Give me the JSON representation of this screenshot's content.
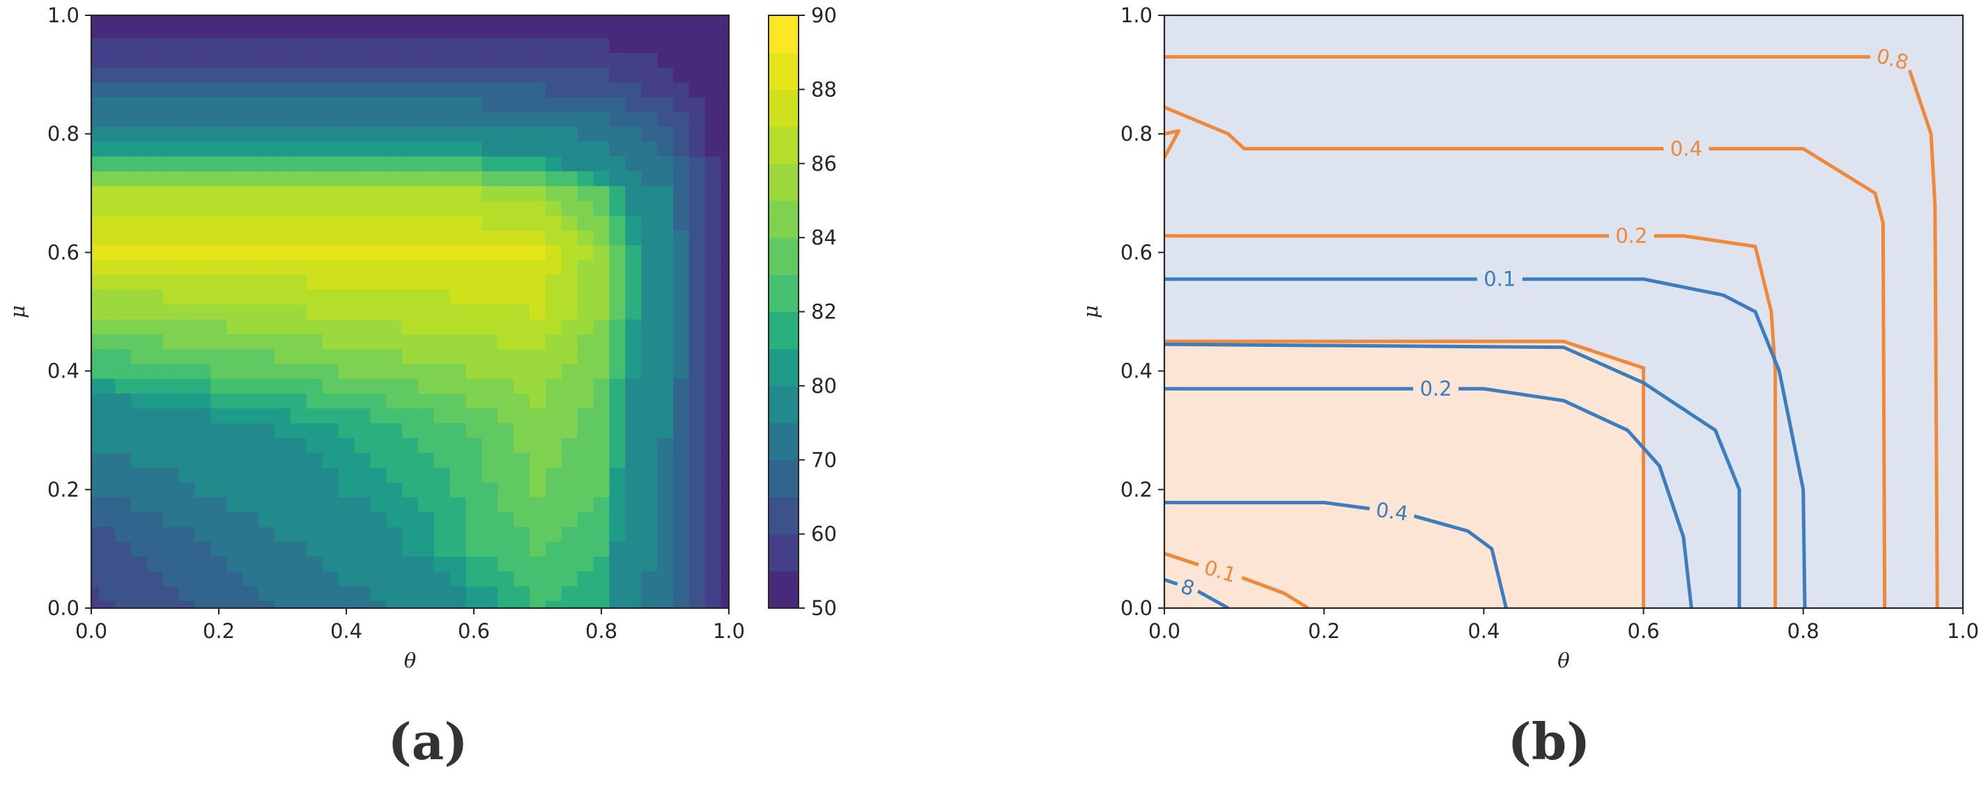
{
  "chart_data": [
    {
      "type": "heatmap",
      "panel": "(a)",
      "xlabel": "θ",
      "ylabel": "μ",
      "xlim": [
        0,
        1
      ],
      "ylim": [
        0,
        1
      ],
      "xticks": [
        "0.0",
        "0.2",
        "0.4",
        "0.6",
        "0.8",
        "1.0"
      ],
      "yticks": [
        "0.0",
        "0.2",
        "0.4",
        "0.6",
        "0.8",
        "1.0"
      ],
      "grid": false,
      "colormap": "viridis",
      "colorbar": {
        "levels": [
          50,
          55,
          60,
          65,
          70,
          75,
          80,
          81,
          82,
          83,
          84,
          85,
          86,
          87,
          88,
          89,
          90
        ],
        "tick_labels": [
          "50",
          "60",
          "70",
          "80",
          "82",
          "84",
          "86",
          "88",
          "90"
        ],
        "colors": [
          "#472b7a",
          "#443f89",
          "#3b528b",
          "#32658e",
          "#2a768e",
          "#228a8d",
          "#1f9c89",
          "#2ab07f",
          "#45bf70",
          "#61c961",
          "#7fd250",
          "#9bd93c",
          "#b5de2b",
          "#cfe11c",
          "#e6e41b",
          "#fde725"
        ]
      },
      "x": [
        0.0,
        0.1,
        0.2,
        0.3,
        0.4,
        0.5,
        0.6,
        0.7,
        0.8,
        0.9,
        1.0
      ],
      "y": [
        0.0,
        0.1,
        0.2,
        0.3,
        0.4,
        0.5,
        0.6,
        0.7,
        0.8,
        0.9,
        1.0
      ],
      "z": [
        [
          58,
          62,
          66,
          70,
          73,
          76,
          80,
          82,
          81,
          72,
          50
        ],
        [
          62,
          66,
          70,
          74,
          77,
          80,
          82,
          83,
          82,
          73,
          50
        ],
        [
          70,
          73,
          76,
          78,
          80,
          81,
          82.5,
          84,
          83,
          74,
          51
        ],
        [
          77,
          78,
          79,
          80,
          81,
          82,
          83,
          84.5,
          83.5,
          75,
          51
        ],
        [
          82,
          82.5,
          83,
          83.5,
          84,
          84.5,
          85,
          85.5,
          84,
          76,
          52
        ],
        [
          85,
          85.3,
          85.6,
          85.9,
          86.2,
          86.5,
          86.8,
          87,
          85,
          77,
          52
        ],
        [
          88,
          88,
          88,
          88,
          88,
          88,
          88,
          88,
          85.5,
          77,
          52
        ],
        [
          86,
          86,
          86,
          86,
          86,
          86,
          86,
          85.5,
          83,
          75,
          51
        ],
        [
          78,
          78,
          78,
          78,
          78,
          78,
          78,
          77,
          74,
          67,
          50
        ],
        [
          62,
          62,
          62,
          62,
          62,
          62,
          62,
          61,
          60,
          56,
          50
        ],
        [
          50,
          50,
          50,
          50,
          50,
          50,
          50,
          50,
          50,
          50,
          50
        ]
      ]
    },
    {
      "type": "line",
      "panel": "(b)",
      "xlabel": "θ",
      "ylabel": "μ",
      "xlim": [
        0,
        1
      ],
      "ylim": [
        0,
        1
      ],
      "xticks": [
        "0.0",
        "0.2",
        "0.4",
        "0.6",
        "0.8",
        "1.0"
      ],
      "yticks": [
        "0.0",
        "0.2",
        "0.4",
        "0.6",
        "0.8",
        "1.0"
      ],
      "grid": false,
      "regions": [
        {
          "color": "#dee3f0",
          "points": [
            [
              0,
              1
            ],
            [
              1,
              1
            ],
            [
              1,
              0
            ],
            [
              0.6,
              0
            ],
            [
              0.6,
              0.405
            ],
            [
              0.5,
              0.45
            ],
            [
              0,
              0.45
            ]
          ]
        },
        {
          "color": "#fde5d6",
          "points": [
            [
              0,
              0
            ],
            [
              0.6,
              0
            ],
            [
              0.6,
              0.405
            ],
            [
              0.5,
              0.45
            ],
            [
              0,
              0.45
            ]
          ]
        }
      ],
      "series": [
        {
          "color": "#f0883a",
          "label": "0.8",
          "points": [
            [
              0,
              0.93
            ],
            [
              0.9,
              0.93
            ],
            [
              0.93,
              0.92
            ],
            [
              0.96,
              0.8
            ],
            [
              0.965,
              0.68
            ],
            [
              0.968,
              0
            ]
          ]
        },
        {
          "color": "#f0883a",
          "label": "0.4",
          "points": [
            [
              0,
              0.845
            ],
            [
              0.08,
              0.8
            ],
            [
              0.1,
              0.775
            ],
            [
              0.8,
              0.775
            ],
            [
              0.89,
              0.7
            ],
            [
              0.9,
              0.65
            ],
            [
              0.902,
              0
            ]
          ]
        },
        {
          "color": "#f0883a",
          "label": "0.2",
          "points": [
            [
              0,
              0.628
            ],
            [
              0.65,
              0.628
            ],
            [
              0.74,
              0.61
            ],
            [
              0.76,
              0.5
            ],
            [
              0.765,
              0.4
            ],
            [
              0.765,
              0
            ]
          ]
        },
        {
          "color": "#f0883a",
          "label": "",
          "points": [
            [
              0,
              0.45
            ],
            [
              0.5,
              0.45
            ],
            [
              0.6,
              0.405
            ],
            [
              0.6,
              0
            ]
          ]
        },
        {
          "color": "#f0883a",
          "label": "",
          "points": [
            [
              0,
              0.76
            ],
            [
              0.018,
              0.805
            ],
            [
              0,
              0.8
            ]
          ]
        },
        {
          "color": "#f0883a",
          "label": "0.1",
          "points": [
            [
              0,
              0.092
            ],
            [
              0.05,
              0.07
            ],
            [
              0.1,
              0.05
            ],
            [
              0.15,
              0.025
            ],
            [
              0.18,
              0
            ]
          ]
        },
        {
          "color": "#3b7dbd",
          "label": "0.1",
          "points": [
            [
              0,
              0.555
            ],
            [
              0.6,
              0.555
            ],
            [
              0.7,
              0.528
            ],
            [
              0.74,
              0.5
            ],
            [
              0.77,
              0.4
            ],
            [
              0.8,
              0.2
            ],
            [
              0.802,
              0
            ]
          ]
        },
        {
          "color": "#3b7dbd",
          "label": "",
          "points": [
            [
              0,
              0.445
            ],
            [
              0.5,
              0.44
            ],
            [
              0.6,
              0.38
            ],
            [
              0.69,
              0.3
            ],
            [
              0.72,
              0.2
            ],
            [
              0.72,
              0
            ]
          ]
        },
        {
          "color": "#3b7dbd",
          "label": "0.2",
          "points": [
            [
              0,
              0.37
            ],
            [
              0.4,
              0.37
            ],
            [
              0.5,
              0.35
            ],
            [
              0.58,
              0.3
            ],
            [
              0.62,
              0.24
            ],
            [
              0.65,
              0.12
            ],
            [
              0.66,
              0
            ]
          ]
        },
        {
          "color": "#3b7dbd",
          "label": "0.4",
          "points": [
            [
              0,
              0.178
            ],
            [
              0.2,
              0.178
            ],
            [
              0.3,
              0.16
            ],
            [
              0.38,
              0.13
            ],
            [
              0.41,
              0.1
            ],
            [
              0.428,
              0
            ]
          ]
        },
        {
          "color": "#3b7dbd",
          "label": "8",
          "points": [
            [
              0,
              0.048
            ],
            [
              0.04,
              0.03
            ],
            [
              0.08,
              0
            ]
          ]
        }
      ]
    }
  ]
}
